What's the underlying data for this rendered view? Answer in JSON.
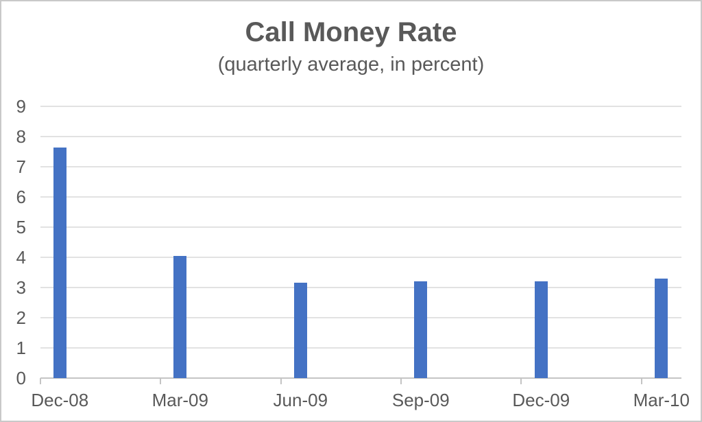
{
  "chart_data": {
    "type": "bar",
    "title": "Call Money Rate",
    "subtitle": "(quarterly average, in percent)",
    "categories": [
      "Dec-08",
      "Mar-09",
      "Jun-09",
      "Sep-09",
      "Dec-09",
      "Mar-10"
    ],
    "values": [
      7.63,
      4.05,
      3.15,
      3.2,
      3.2,
      3.3
    ],
    "xlabel": "",
    "ylabel": "",
    "ylim": [
      0,
      9
    ],
    "yticks": [
      0,
      1,
      2,
      3,
      4,
      5,
      6,
      7,
      8,
      9
    ],
    "grid": "horizontal",
    "legend": "none",
    "colors": {
      "bar": "#4472C4",
      "gridline": "#E2E2E2",
      "axis": "#C4C4C4",
      "text": "#595959",
      "chart_border": "#C9C9C9",
      "background": "#FFFFFF"
    }
  }
}
